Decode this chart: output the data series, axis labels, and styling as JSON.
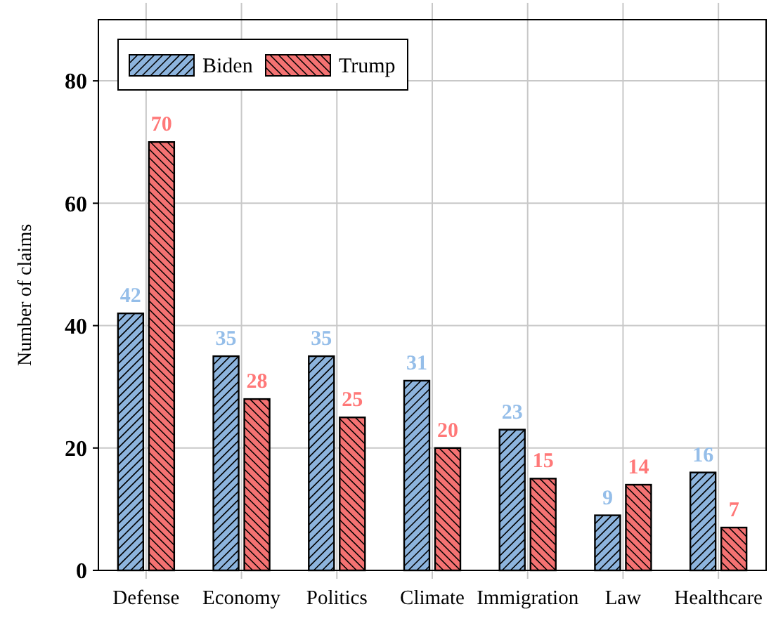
{
  "chart_data": {
    "type": "bar",
    "ylabel": "Number of claims",
    "categories": [
      "Defense",
      "Economy",
      "Politics",
      "Climate",
      "Immigration",
      "Law",
      "Healthcare"
    ],
    "series": [
      {
        "name": "Biden",
        "color": "#8db4dd",
        "values": [
          42,
          35,
          35,
          31,
          23,
          9,
          16
        ]
      },
      {
        "name": "Trump",
        "color": "#f47272",
        "values": [
          70,
          28,
          25,
          20,
          15,
          14,
          7
        ]
      }
    ],
    "ylim": [
      0,
      90
    ],
    "yticks": [
      0,
      20,
      40,
      60,
      80
    ],
    "grid": true,
    "legend": "top left",
    "data_labels": true
  }
}
